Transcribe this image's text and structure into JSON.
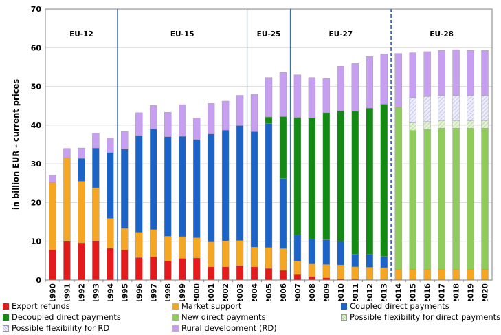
{
  "chart_data": {
    "type": "bar",
    "stacked": true,
    "ylabel": "in billion EUR - current prices",
    "ylim": [
      0,
      70
    ],
    "yticks": [
      0,
      10,
      20,
      30,
      40,
      50,
      60,
      70
    ],
    "categories": [
      "1990",
      "1991",
      "1992",
      "1993",
      "1994",
      "1995",
      "1996",
      "1997",
      "1998",
      "1999",
      "2000",
      "2001",
      "2002",
      "2003",
      "2004",
      "2005",
      "2006",
      "2007",
      "2008",
      "2009",
      "2010",
      "2011",
      "2012",
      "2013",
      "2014",
      "2015",
      "2016",
      "2017",
      "2018",
      "2019",
      "2020"
    ],
    "periods": [
      {
        "label": "EU-12",
        "from": "1990",
        "to": "1994"
      },
      {
        "label": "EU-15",
        "from": "1995",
        "to": "2003"
      },
      {
        "label": "EU-25",
        "from": "2004",
        "to": "2006"
      },
      {
        "label": "EU-27",
        "from": "2007",
        "to": "2013"
      },
      {
        "label": "EU-28",
        "from": "2014",
        "to": "2020"
      }
    ],
    "series": [
      {
        "name": "Export refunds",
        "color": "#e41a1c",
        "pattern": "solid",
        "values": [
          7.8,
          10.0,
          9.6,
          10.1,
          8.2,
          7.8,
          5.8,
          6.0,
          4.9,
          5.6,
          5.7,
          3.4,
          3.4,
          3.7,
          3.4,
          3.0,
          2.5,
          1.4,
          0.9,
          0.6,
          0.3,
          0.2,
          0.1,
          0.1,
          0,
          0,
          0,
          0,
          0,
          0,
          0
        ]
      },
      {
        "name": "Market support",
        "color": "#f5a623",
        "pattern": "solid",
        "values": [
          17.4,
          21.6,
          15.9,
          13.7,
          7.7,
          5.5,
          6.5,
          7.0,
          6.4,
          5.6,
          5.2,
          6.4,
          6.7,
          6.5,
          5.1,
          5.4,
          5.6,
          3.5,
          3.2,
          3.4,
          3.6,
          3.2,
          3.2,
          3.1,
          2.7,
          2.7,
          2.7,
          2.7,
          2.7,
          2.7,
          2.7
        ]
      },
      {
        "name": "Coupled direct payments",
        "color": "#1b63c6",
        "pattern": "solid",
        "values": [
          0,
          0,
          5.9,
          10.3,
          17.0,
          20.5,
          25.0,
          26.0,
          25.7,
          25.9,
          25.4,
          27.9,
          28.6,
          29.7,
          29.8,
          32.0,
          18.1,
          6.7,
          6.5,
          6.4,
          6.1,
          3.3,
          3.3,
          2.9,
          0,
          0,
          0,
          0,
          0,
          0,
          0
        ]
      },
      {
        "name": "Decoupled direct payments",
        "color": "#138a13",
        "pattern": "solid",
        "values": [
          0,
          0,
          0,
          0,
          0,
          0,
          0,
          0,
          0,
          0,
          0,
          0,
          0,
          0,
          0,
          1.7,
          16.0,
          30.4,
          31.2,
          32.8,
          33.7,
          36.9,
          37.8,
          39.3,
          0,
          0,
          0,
          0,
          0,
          0,
          0
        ]
      },
      {
        "name": "New direct payments",
        "color": "#90cc5c",
        "pattern": "solid",
        "values": [
          0,
          0,
          0,
          0,
          0,
          0,
          0,
          0,
          0,
          0,
          0,
          0,
          0,
          0,
          0,
          0,
          0,
          0,
          0,
          0,
          0,
          0,
          0,
          0,
          41.9,
          35.9,
          36.2,
          36.5,
          36.5,
          36.5,
          36.5
        ]
      },
      {
        "name": "Possible flexibility for direct payments",
        "color": "#c9e5b0",
        "pattern": "hatch",
        "values": [
          0,
          0,
          0,
          0,
          0,
          0,
          0,
          0,
          0,
          0,
          0,
          0,
          0,
          0,
          0,
          0,
          0,
          0,
          0,
          0,
          0,
          0,
          0,
          0,
          0,
          2.0,
          2.0,
          2.0,
          2.0,
          2.0,
          2.0
        ]
      },
      {
        "name": "Possible flexibility for RD",
        "color": "#c9c9f0",
        "pattern": "hatch",
        "values": [
          0,
          0,
          0,
          0,
          0,
          0,
          0,
          0,
          0,
          0,
          0,
          0,
          0,
          0,
          0,
          0,
          0,
          0,
          0,
          0,
          0,
          0,
          0,
          0,
          0,
          6.5,
          6.5,
          6.5,
          6.5,
          6.5,
          6.5
        ]
      },
      {
        "name": "Rural development (RD)",
        "color": "#c79ff0",
        "pattern": "solid",
        "values": [
          1.9,
          2.4,
          2.7,
          3.8,
          3.8,
          4.6,
          5.9,
          6.1,
          6.3,
          8.2,
          5.5,
          7.9,
          7.5,
          7.8,
          9.7,
          10.2,
          11.4,
          11.0,
          10.5,
          8.8,
          11.5,
          12.3,
          13.3,
          13.0,
          13.9,
          11.6,
          11.6,
          11.6,
          11.8,
          11.6,
          11.6
        ]
      }
    ]
  }
}
